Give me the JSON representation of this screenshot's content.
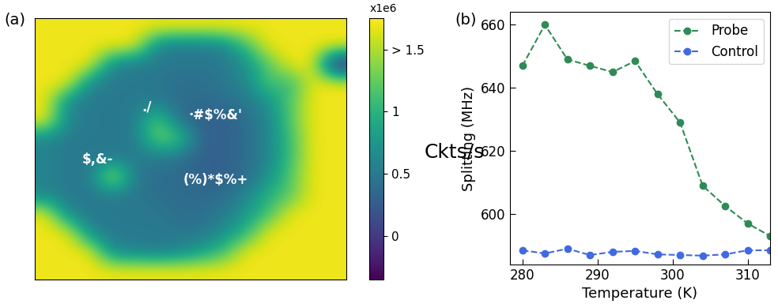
{
  "chart_data": [
    {
      "type": "heatmap",
      "panel_label": "(a)",
      "cells": [
        [
          1.7,
          1.7,
          1.7,
          1.7,
          1.7,
          1.7,
          1.7,
          1.7,
          1.7,
          1.7,
          1.7,
          1.7,
          1.7,
          1.7
        ],
        [
          1.7,
          1.7,
          1.7,
          1.7,
          1.7,
          0.6,
          0.5,
          0.5,
          0.6,
          1.1,
          1.7,
          1.7,
          1.7,
          1.7
        ],
        [
          1.7,
          1.7,
          1.7,
          0.6,
          0.5,
          0.5,
          0.5,
          0.5,
          0.5,
          0.7,
          1.2,
          1.7,
          1.7,
          -0.3
        ],
        [
          1.7,
          1.7,
          0.6,
          0.5,
          0.5,
          0.5,
          0.4,
          0.4,
          0.5,
          0.6,
          1.2,
          1.0,
          1.7,
          1.7
        ],
        [
          1.7,
          0.6,
          0.5,
          0.5,
          0.5,
          0.5,
          0.4,
          0.4,
          0.4,
          0.5,
          0.7,
          1.2,
          1.7,
          1.7
        ],
        [
          1.7,
          0.6,
          0.5,
          0.5,
          0.5,
          1.3,
          0.4,
          0.3,
          0.3,
          0.4,
          0.6,
          1.2,
          1.7,
          1.7
        ],
        [
          0.6,
          0.5,
          0.5,
          0.5,
          0.5,
          1.3,
          1.2,
          0.3,
          0.3,
          0.4,
          0.6,
          1.1,
          1.7,
          1.7
        ],
        [
          0.6,
          0.5,
          0.5,
          0.5,
          0.5,
          0.5,
          0.4,
          0.3,
          0.3,
          0.4,
          0.6,
          1.1,
          1.7,
          1.7
        ],
        [
          0.6,
          0.5,
          0.5,
          1.7,
          0.5,
          0.4,
          0.4,
          0.3,
          0.3,
          0.4,
          0.7,
          1.2,
          1.7,
          1.7
        ],
        [
          0.6,
          0.5,
          0.5,
          0.5,
          0.5,
          0.4,
          0.4,
          0.4,
          0.4,
          0.6,
          1.0,
          1.2,
          1.7,
          1.7
        ],
        [
          1.7,
          0.6,
          0.5,
          0.5,
          0.5,
          0.5,
          0.4,
          0.4,
          0.5,
          0.8,
          1.1,
          1.7,
          1.7,
          1.7
        ],
        [
          1.7,
          1.7,
          0.6,
          0.5,
          0.5,
          0.5,
          0.5,
          0.5,
          0.7,
          1.0,
          1.7,
          1.7,
          1.7,
          1.7
        ],
        [
          1.7,
          1.7,
          1.7,
          0.6,
          0.6,
          0.5,
          0.6,
          0.8,
          1.1,
          1.7,
          1.7,
          1.7,
          1.7,
          1.7
        ],
        [
          1.7,
          1.7,
          1.7,
          1.7,
          1.7,
          1.7,
          1.7,
          1.7,
          1.7,
          1.7,
          1.7,
          1.7,
          1.7,
          1.7
        ]
      ],
      "color_range": [
        -0.35,
        1.75
      ],
      "colorbar_ticks": [
        0,
        0.5,
        1,
        {
          "value": 1.5,
          "label": "> 1.5"
        }
      ],
      "colorbar_title": "x1e6",
      "colorbar_label": "Ckts/s",
      "annotations": [
        "./",
        "$,&-",
        "·#$%&'",
        "(%)*$%+"
      ],
      "tick_labels": false
    },
    {
      "type": "line",
      "panel_label": "(b)",
      "x_label": "Temperature (K)",
      "y_label": "Splitting (MHz)",
      "x": [
        280,
        283,
        286,
        289,
        292,
        295,
        298,
        301,
        304,
        307,
        310,
        313
      ],
      "series": [
        {
          "name": "Probe",
          "color": "#2e8b57",
          "marker": "o",
          "line_style": "dashed",
          "values": [
            647,
            660,
            649,
            647,
            645,
            648.5,
            638,
            629,
            609,
            602.5,
            597,
            593
          ]
        },
        {
          "name": "Control",
          "color": "#4169e1",
          "marker": "o",
          "line_style": "dashed",
          "values": [
            588.5,
            587.5,
            589,
            587,
            588,
            588.3,
            587.2,
            587,
            586.8,
            587.2,
            588.5,
            588.5
          ]
        }
      ],
      "xlim": [
        278.3,
        313
      ],
      "xticks": [
        280,
        290,
        300,
        310
      ],
      "ylim": [
        584,
        664
      ],
      "yticks": [
        600,
        620,
        640,
        660
      ],
      "legend": "upper right"
    }
  ]
}
